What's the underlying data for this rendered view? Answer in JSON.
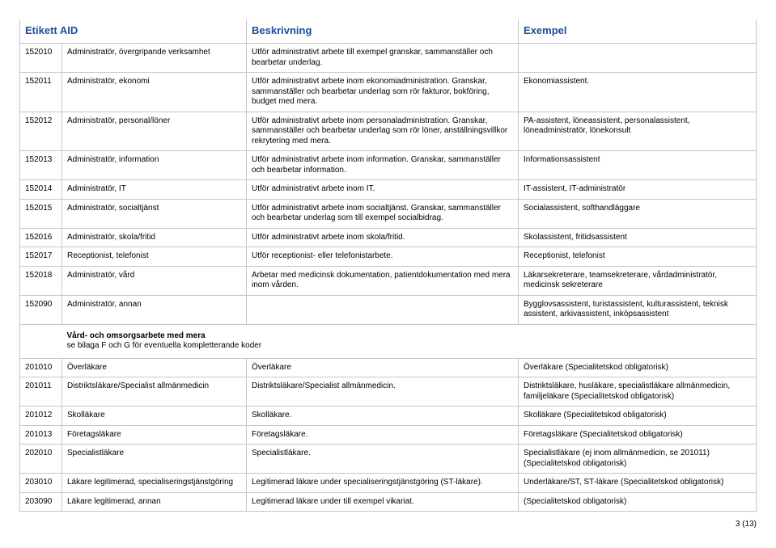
{
  "header": {
    "col1": "Etikett AID",
    "col2": "Beskrivning",
    "col3": "Exempel"
  },
  "rows": [
    {
      "code": "152010",
      "label": "Administratör, övergripande verksamhet",
      "desc": "Utför administrativt arbete till exempel granskar, sammanställer och bearbetar underlag.",
      "ex": ""
    },
    {
      "code": "152011",
      "label": "Administratör, ekonomi",
      "desc": "Utför administrativt arbete inom ekonomiadministration. Granskar, sammanställer och bearbetar underlag som rör fakturor, bokföring, budget med mera.",
      "ex": "Ekonomiassistent."
    },
    {
      "code": "152012",
      "label": "Administratör, personal/löner",
      "desc": "Utför administrativt arbete inom personaladministration. Granskar, sammanställer och bearbetar underlag som rör löner, anställningsvillkor rekrytering med mera.",
      "ex": "PA-assistent, löneassistent, personalassistent, löneadministratör, lönekonsult"
    },
    {
      "code": "152013",
      "label": "Administratör, information",
      "desc": "Utför administrativt arbete inom information. Granskar, sammanställer och bearbetar information.",
      "ex": "Informationsassistent"
    },
    {
      "code": "152014",
      "label": "Administratör, IT",
      "desc": "Utför administrativt arbete inom IT.",
      "ex": "IT-assistent, IT-administratör"
    },
    {
      "code": "152015",
      "label": "Administratör, socialtjänst",
      "desc": "Utför administrativt arbete inom socialtjänst. Granskar, sammanställer och bearbetar underlag som till exempel socialbidrag.",
      "ex": "Socialassistent, softhandläggare"
    },
    {
      "code": "152016",
      "label": "Administratör, skola/fritid",
      "desc": "Utför administrativt arbete inom skola/fritid.",
      "ex": "Skolassistent, fritidsassistent"
    },
    {
      "code": "152017",
      "label": "Receptionist, telefonist",
      "desc": "Utför receptionist- eller telefonistarbete.",
      "ex": "Receptionist, telefonist"
    },
    {
      "code": "152018",
      "label": "Administratör, vård",
      "desc": "Arbetar med medicinsk dokumentation, patientdokumentation med mera inom vården.",
      "ex": "Läkarsekreterare, teamsekreterare, vårdadministratör, medicinsk sekreterare"
    },
    {
      "code": "152090",
      "label": "Administratör, annan",
      "desc": "",
      "ex": "Bygglovsassistent, turistassistent, kulturassistent, teknisk assistent, arkivassistent, inköpsassistent"
    }
  ],
  "section": {
    "title": "Vård- och omsorgsarbete med mera",
    "sub": "se bilaga F och G för eventuella kompletterande koder"
  },
  "rows2": [
    {
      "code": "201010",
      "label": "Överläkare",
      "desc": "Överläkare",
      "ex": "Överläkare (Specialitetskod obligatorisk)"
    },
    {
      "code": "201011",
      "label": "Distriktsläkare/Specialist allmänmedicin",
      "desc": "Distriktsläkare/Specialist allmänmedicin.",
      "ex": "Distriktsläkare, husläkare, specialistläkare allmänmedicin, familjeläkare (Specialitetskod obligatorisk)"
    },
    {
      "code": "201012",
      "label": "Skolläkare",
      "desc": "Skolläkare.",
      "ex": "Skolläkare (Specialitetskod obligatorisk)"
    },
    {
      "code": "201013",
      "label": "Företagsläkare",
      "desc": "Företagsläkare.",
      "ex": "Företagsläkare (Specialitetskod obligatorisk)"
    },
    {
      "code": "202010",
      "label": "Specialistläkare",
      "desc": "Specialistläkare.",
      "ex": "Specialistläkare (ej inom allmänmedicin, se 201011) (Specialitetskod obligatorisk)"
    },
    {
      "code": "203010",
      "label": "Läkare legitimerad, specialiseringstjänstgöring",
      "desc": "Legitimerad läkare under specialiseringstjänstgöring (ST-läkare).",
      "ex": "Underläkare/ST, ST-läkare (Specialitetskod obligatorisk)"
    },
    {
      "code": "203090",
      "label": "Läkare legitimerad, annan",
      "desc": "Legitimerad läkare under till exempel vikariat.",
      "ex": "(Specialitetskod obligatorisk)"
    }
  ],
  "pageNumber": "3 (13)"
}
